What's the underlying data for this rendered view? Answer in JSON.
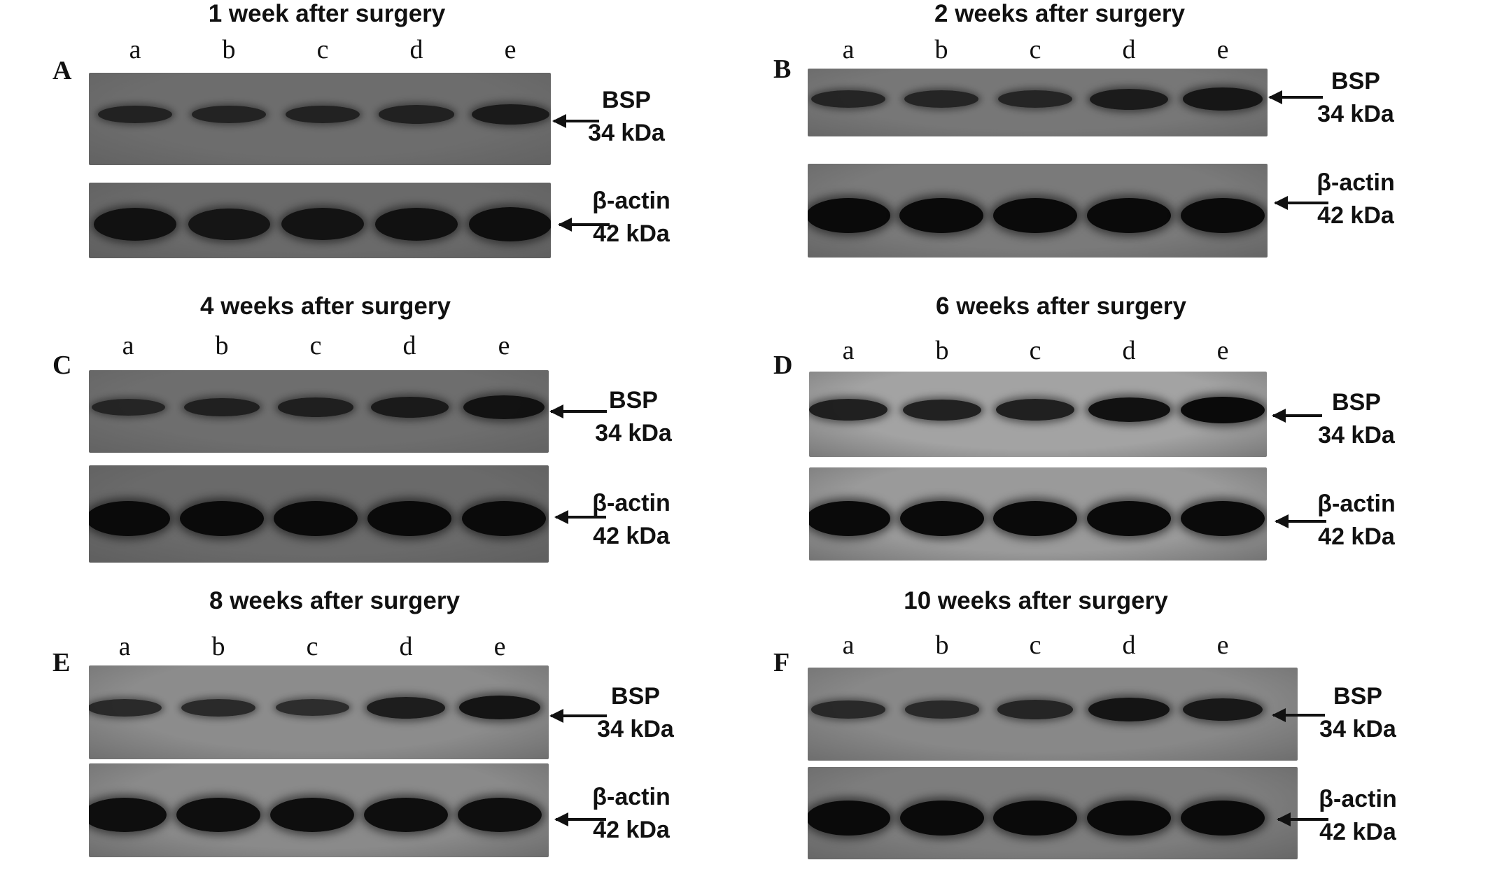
{
  "lanes": [
    "a",
    "b",
    "c",
    "d",
    "e"
  ],
  "bsp_label": {
    "name": "BSP",
    "size": "34 kDa"
  },
  "actin_label": {
    "name": "β-actin",
    "size": "42 kDa"
  },
  "panels": [
    {
      "id": "A",
      "title": "1 week after surgery",
      "bsp_intensity": [
        0.55,
        0.52,
        0.55,
        0.58,
        0.7
      ],
      "actin_intensity": [
        0.85,
        0.8,
        0.82,
        0.85,
        0.92
      ],
      "colors": {
        "bsp_bg": "#6d6d6d",
        "actin_bg": "#6a6a6a"
      }
    },
    {
      "id": "B",
      "title": "2 weeks after surgery",
      "bsp_intensity": [
        0.55,
        0.55,
        0.55,
        0.72,
        0.8
      ],
      "actin_intensity": [
        1.0,
        1.0,
        1.0,
        1.0,
        1.0
      ],
      "colors": {
        "bsp_bg": "#777777",
        "actin_bg": "#7a7a7a"
      }
    },
    {
      "id": "C",
      "title": "4 weeks after surgery",
      "bsp_intensity": [
        0.5,
        0.6,
        0.62,
        0.7,
        0.85
      ],
      "actin_intensity": [
        1.0,
        1.0,
        1.0,
        1.0,
        1.0
      ],
      "colors": {
        "bsp_bg": "#6e6e6e",
        "actin_bg": "#6a6a6a"
      }
    },
    {
      "id": "D",
      "title": "6 weeks after surgery",
      "bsp_intensity": [
        0.75,
        0.72,
        0.75,
        0.9,
        1.0
      ],
      "actin_intensity": [
        1.0,
        1.0,
        1.0,
        1.0,
        1.0
      ],
      "colors": {
        "bsp_bg": "#a3a3a3",
        "actin_bg": "#9a9a9a"
      }
    },
    {
      "id": "E",
      "title": "8 weeks after surgery",
      "bsp_intensity": [
        0.55,
        0.55,
        0.5,
        0.75,
        0.85
      ],
      "actin_intensity": [
        0.95,
        0.95,
        0.95,
        0.95,
        0.95
      ],
      "colors": {
        "bsp_bg": "#8c8c8c",
        "actin_bg": "#8a8a8a"
      }
    },
    {
      "id": "F",
      "title": "10 weeks after surgery",
      "bsp_intensity": [
        0.55,
        0.55,
        0.62,
        0.85,
        0.8
      ],
      "actin_intensity": [
        1.0,
        1.0,
        1.0,
        1.0,
        1.0
      ],
      "colors": {
        "bsp_bg": "#888888",
        "actin_bg": "#7d7d7d"
      }
    }
  ]
}
